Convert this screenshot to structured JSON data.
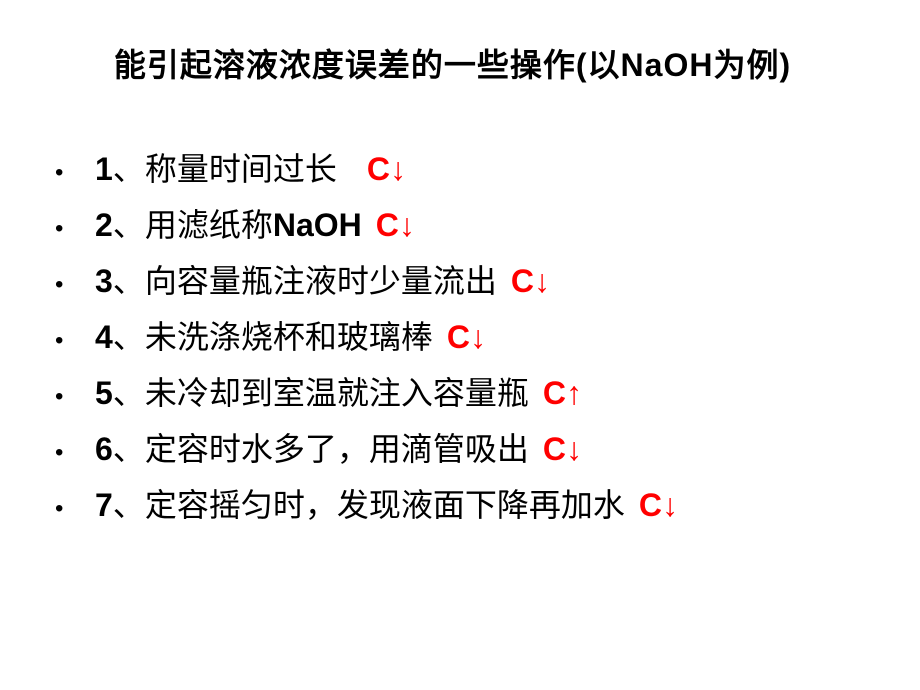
{
  "title_prefix": "能引起溶液浓度误差的一些操作",
  "title_paren_open": "(",
  "title_mid": "以",
  "title_formula": "NaOH",
  "title_suffix": "为例",
  "title_paren_close": ")",
  "items": [
    {
      "num": "1",
      "sep": "、",
      "text": "称量时间过长",
      "effect": "C↓"
    },
    {
      "num": "2",
      "sep": "、",
      "text_pre": "用滤纸称",
      "formula": "NaOH",
      "effect": "C↓"
    },
    {
      "num": "3",
      "sep": "、",
      "text": "向容量瓶注液时少量流出",
      "effect": "C↓"
    },
    {
      "num": "4",
      "sep": "、",
      "text": "未洗涤烧杯和玻璃棒",
      "effect": "C↓"
    },
    {
      "num": "5",
      "sep": "、",
      "text": "未冷却到室温就注入容量瓶",
      "effect": "C↑"
    },
    {
      "num": "6",
      "sep": "、",
      "text": "定容时水多了，用滴管吸出",
      "effect": "C↓"
    },
    {
      "num": "7",
      "sep": "、",
      "text": "定容摇匀时，发现液面下降再加水",
      "effect": "C↓"
    }
  ],
  "colors": {
    "text": "#000000",
    "effect": "#ff0000",
    "background": "#ffffff"
  },
  "fonts": {
    "title_size": 32,
    "item_size": 32
  }
}
